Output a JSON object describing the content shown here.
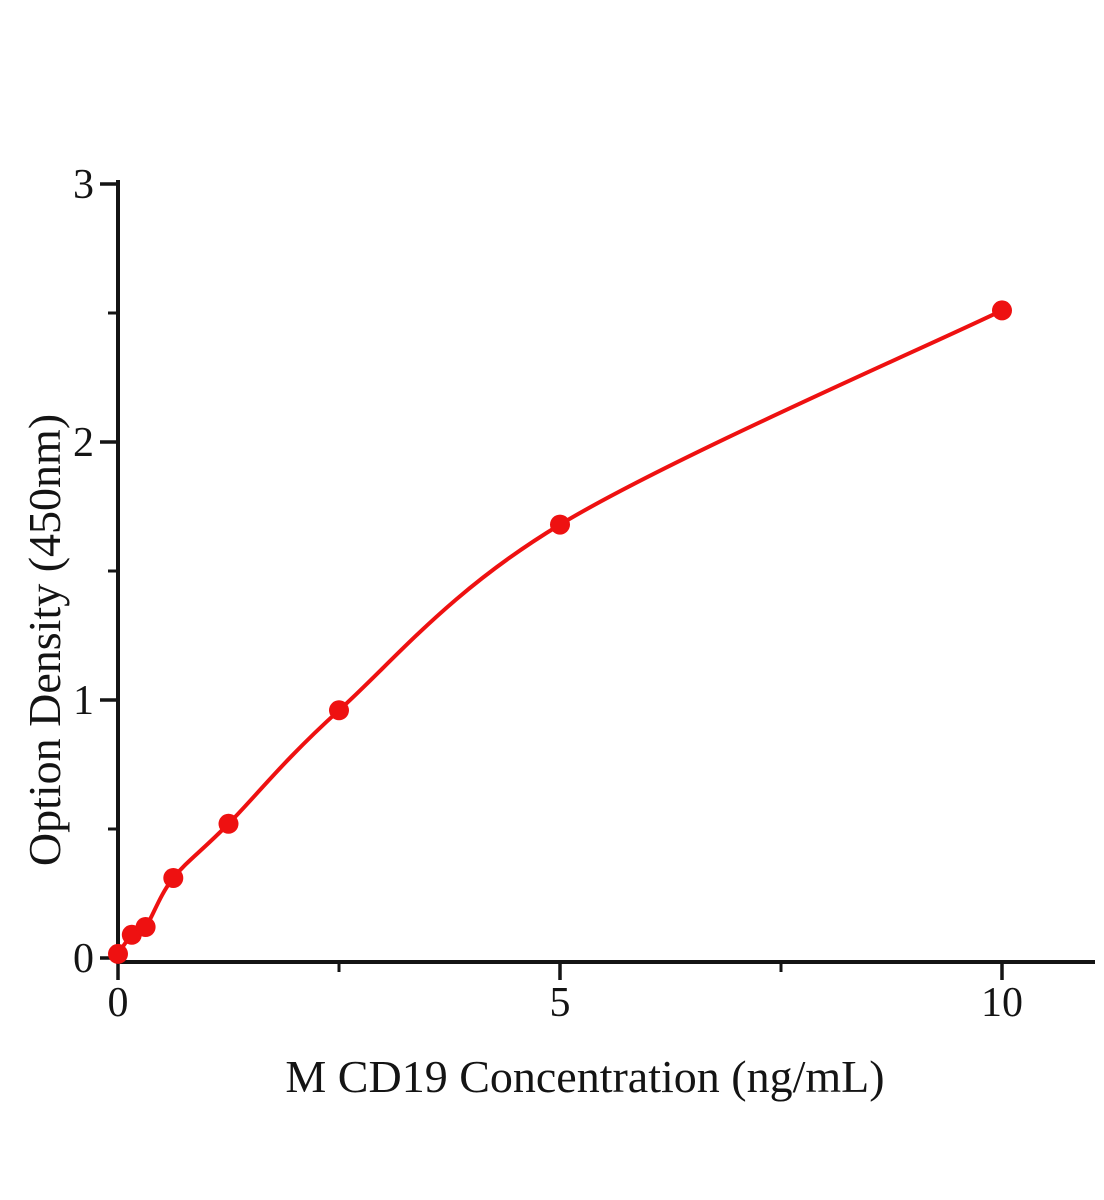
{
  "figure": {
    "background": "#ffffff",
    "axis_color": "#141414",
    "accent_red": "#ee1111"
  },
  "chart_data": {
    "type": "line",
    "title": "",
    "xlabel": "M CD19 Concentration (ng/mL)",
    "ylabel": "Option Density (450nm)",
    "x": [
      0,
      0.156,
      0.3125,
      0.625,
      1.25,
      2.5,
      5,
      10
    ],
    "y": [
      0.016,
      0.09,
      0.12,
      0.31,
      0.52,
      0.96,
      1.68,
      2.51
    ],
    "xlim": [
      0,
      11
    ],
    "ylim": [
      0,
      3
    ],
    "x_major_ticks": [
      0,
      5,
      10
    ],
    "x_minor_ticks": [
      2.5,
      7.5
    ],
    "y_major_ticks": [
      0,
      1,
      2,
      3
    ],
    "y_minor_ticks": [
      0.5,
      1.5,
      2.5
    ],
    "grid": false,
    "legend": false,
    "marker": "filled-circle",
    "line_style": "smooth-fit-curve"
  }
}
